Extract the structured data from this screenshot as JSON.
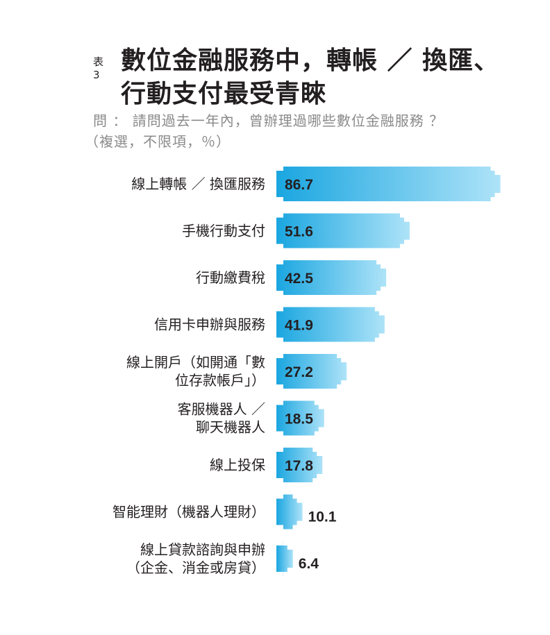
{
  "header": {
    "table_tag": "表3",
    "title_line1": "數位金融服務中，轉帳 ／ 換匯、",
    "title_line2": "行動支付最受青睞",
    "question": "問 ： 請問過去一年內，曾辦理過哪些數位金融服務 ？",
    "note": "（複選，不限項，％）"
  },
  "chart_data": {
    "type": "bar",
    "orientation": "horizontal",
    "title": "數位金融服務中，轉帳 ／ 換匯、行動支付最受青睞",
    "categories": [
      [
        "線上轉帳 ／ 換匯服務"
      ],
      [
        "手機行動支付"
      ],
      [
        "行動繳費稅"
      ],
      [
        "信用卡申辦與服務"
      ],
      [
        "線上開戶（如開通「數",
        "位存款帳戶」）"
      ],
      [
        "客服機器人 ／",
        "聊天機器人"
      ],
      [
        "線上投保"
      ],
      [
        "智能理財（機器人理財）"
      ],
      [
        "線上貸款諮詢與申辦",
        "（企金、消金或房貸）"
      ]
    ],
    "values": [
      86.7,
      51.6,
      42.5,
      41.9,
      27.2,
      18.5,
      17.8,
      10.1,
      6.4
    ],
    "value_labels": [
      "86.7",
      "51.6",
      "42.5",
      "41.9",
      "27.2",
      "18.5",
      "17.8",
      "10.1",
      "6.4"
    ],
    "unit": "%",
    "xlim": [
      0,
      100
    ],
    "grid": false,
    "legend": "none",
    "colors": {
      "bar_start": "#1aa6e0",
      "bar_end": "#aee3f8",
      "text": "#231f20"
    }
  }
}
